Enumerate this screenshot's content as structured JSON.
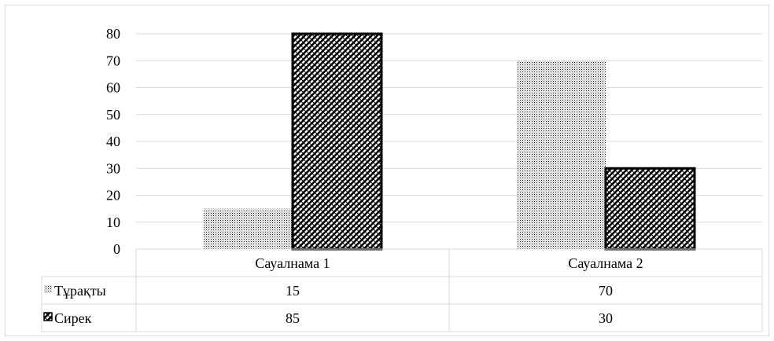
{
  "chart_data": {
    "type": "bar",
    "categories": [
      "Сауалнама 1",
      "Сауалнама 2"
    ],
    "series": [
      {
        "name": "Тұрақты",
        "values": [
          15,
          70
        ],
        "pattern": "dots"
      },
      {
        "name": "Сирек",
        "values": [
          85,
          30
        ],
        "pattern": "diagonal-checker"
      }
    ],
    "ylim": [
      0,
      80
    ],
    "yticks": [
      "0",
      "10",
      "20",
      "30",
      "40",
      "50",
      "60",
      "70",
      "80"
    ],
    "grid": true,
    "legend": "data-table",
    "data_table": {
      "rows": [
        {
          "label": "Тұрақты",
          "cells": [
            "15",
            "70"
          ]
        },
        {
          "label": "Сирек",
          "cells": [
            "85",
            "30"
          ]
        }
      ]
    },
    "colors": {
      "bar_fill": "#ffffff",
      "pattern_ink": "#000000",
      "grid": "#d9d9d9",
      "frame": "#d9d9d9"
    }
  }
}
